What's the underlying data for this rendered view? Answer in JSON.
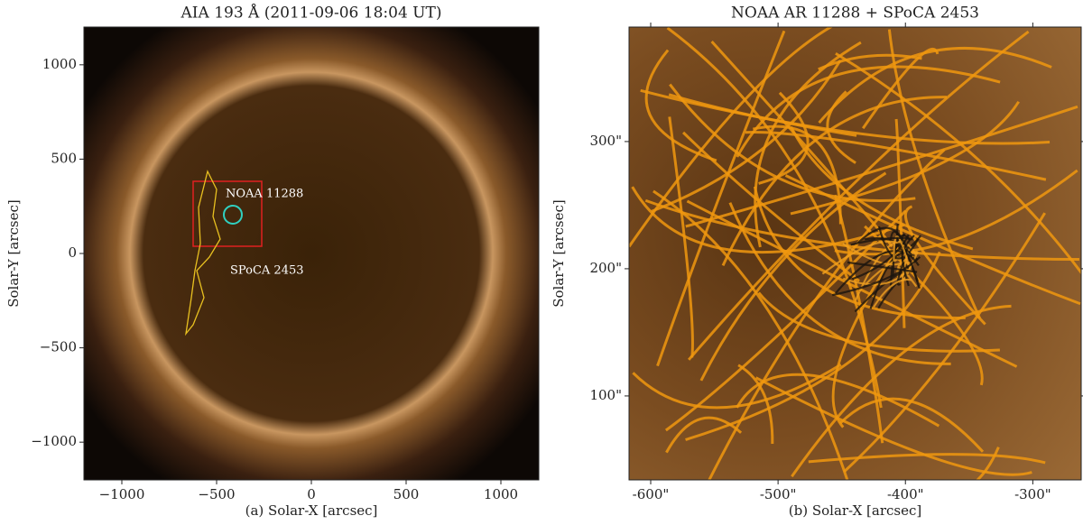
{
  "chart_data": [
    {
      "type": "image",
      "title": "AIA 193 Å (2011-09-06 18:04 UT)",
      "x_label": "(a) Solar-X [arcsec]",
      "y_label": "Solar-Y [arcsec]",
      "xlim": [
        -1200,
        1200
      ],
      "ylim": [
        -1200,
        1200
      ],
      "xticks": [
        {
          "value": -1000,
          "label": "−1000"
        },
        {
          "value": -500,
          "label": "−500"
        },
        0,
        500,
        1000
      ],
      "yticks": [
        {
          "value": -1000,
          "label": "−1000"
        },
        {
          "value": -500,
          "label": "−500"
        },
        0,
        500,
        1000
      ],
      "annotations": [
        "NOAA 11288",
        "SPoCA 2453"
      ]
    },
    {
      "type": "image",
      "title": "NOAA AR 11288 + SPoCA 2453",
      "x_label": "(b) Solar-X [arcsec]",
      "y_label": "Solar-Y [arcsec]",
      "xlim": [
        -617,
        -262
      ],
      "ylim": [
        34,
        390
      ],
      "xticks": [
        {
          "value": -600,
          "label": "-600\""
        },
        {
          "value": -500,
          "label": "-500\""
        },
        {
          "value": -400,
          "label": "-400\""
        },
        {
          "value": -300,
          "label": "-300\""
        }
      ],
      "yticks": [
        {
          "value": 100,
          "label": "100\""
        },
        {
          "value": 200,
          "label": "200\""
        },
        {
          "value": 300,
          "label": "300\""
        }
      ]
    }
  ]
}
